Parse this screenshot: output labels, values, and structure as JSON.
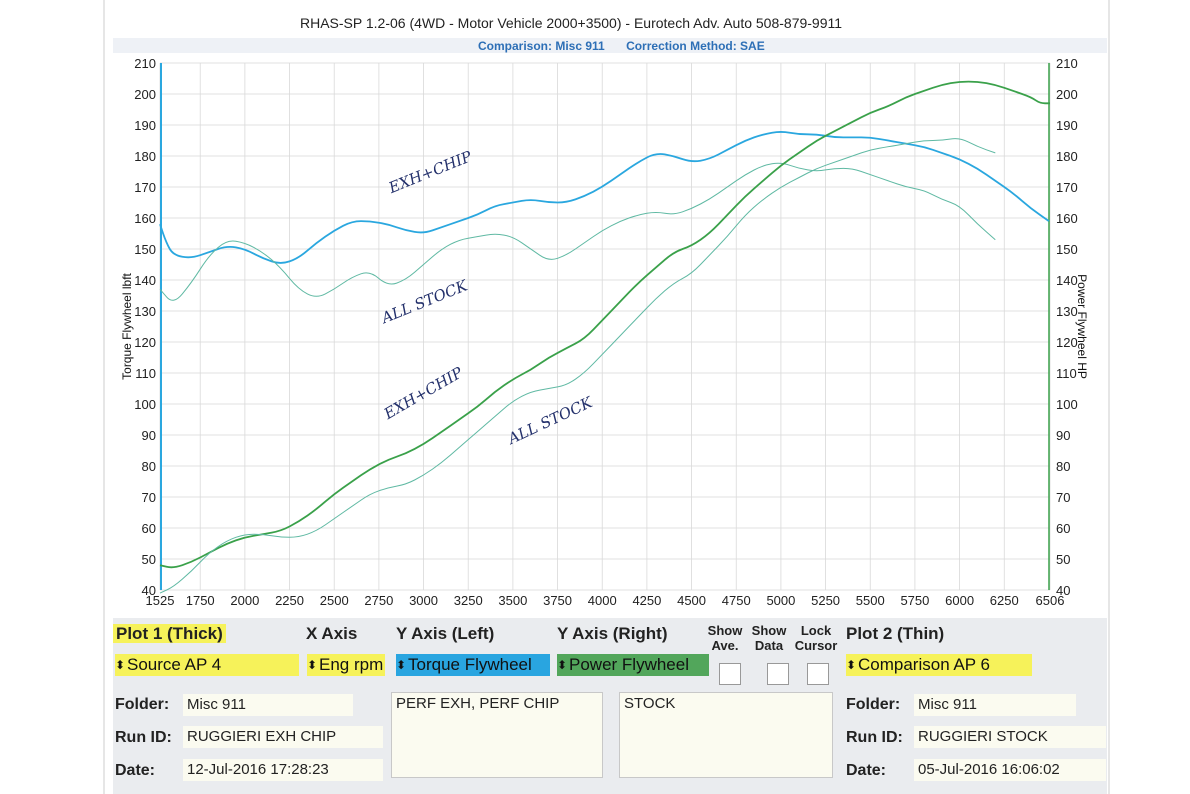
{
  "header": {
    "title": "RHAS-SP 1.2-06  (4WD - Motor Vehicle 2000+3500) - Eurotech Adv. Auto 508-879-9911",
    "comparison": "Comparison: Misc 911",
    "correction": "Correction Method: SAE"
  },
  "chart_data": {
    "type": "line",
    "x_label_ticks": [
      "1525",
      "1750",
      "2000",
      "2250",
      "2500",
      "2750",
      "3000",
      "3250",
      "3500",
      "3750",
      "4000",
      "4250",
      "4500",
      "4750",
      "5000",
      "5250",
      "5500",
      "5750",
      "6000",
      "6250",
      "6506"
    ],
    "xlim": [
      1525,
      6506
    ],
    "ylim": [
      40,
      210
    ],
    "y_ticks": [
      40,
      50,
      60,
      70,
      80,
      90,
      100,
      110,
      120,
      130,
      140,
      150,
      160,
      170,
      180,
      190,
      200,
      210
    ],
    "ylabel_left": "Torque Flywheel lbft",
    "ylabel_right": "Power Flywheel HP",
    "grid": true,
    "series": [
      {
        "name": "Torque - RUGGIERI EXH CHIP (thick)",
        "color": "#2aa7df",
        "width": 1.8,
        "x": [
          1525,
          1560,
          1600,
          1700,
          1800,
          1900,
          2000,
          2100,
          2200,
          2300,
          2400,
          2500,
          2600,
          2700,
          2800,
          2900,
          3000,
          3100,
          3200,
          3300,
          3400,
          3500,
          3600,
          3700,
          3800,
          3900,
          4000,
          4100,
          4200,
          4300,
          4400,
          4500,
          4600,
          4700,
          4800,
          4900,
          5000,
          5100,
          5200,
          5300,
          5400,
          5500,
          5600,
          5700,
          5800,
          5900,
          6000,
          6100,
          6200,
          6300,
          6400,
          6500
        ],
        "y": [
          158,
          152,
          148,
          147,
          149,
          151,
          150,
          147,
          145,
          147,
          152,
          156,
          159,
          159,
          158,
          156,
          155,
          157,
          159,
          161,
          164,
          165,
          166,
          165,
          165,
          167,
          170,
          174,
          178,
          181,
          180,
          178,
          179,
          182,
          185,
          187,
          188,
          187,
          187,
          186,
          186,
          186,
          185,
          184,
          183,
          181,
          179,
          176,
          172,
          168,
          163,
          159
        ]
      },
      {
        "name": "Torque - RUGGIERI STOCK (thin)",
        "color": "#5fb9a3",
        "width": 1,
        "x": [
          1525,
          1600,
          1700,
          1800,
          1900,
          2000,
          2100,
          2200,
          2300,
          2400,
          2500,
          2600,
          2700,
          2800,
          2900,
          3000,
          3100,
          3200,
          3300,
          3400,
          3500,
          3600,
          3700,
          3800,
          3900,
          4000,
          4100,
          4200,
          4300,
          4400,
          4500,
          4600,
          4700,
          4800,
          4900,
          5000,
          5100,
          5200,
          5300,
          5400,
          5500,
          5600,
          5700,
          5800,
          5900,
          6000,
          6100,
          6200
        ],
        "y": [
          137,
          132,
          139,
          148,
          153,
          152,
          149,
          144,
          137,
          134,
          137,
          141,
          143,
          138,
          140,
          145,
          150,
          153,
          154,
          155,
          154,
          150,
          146,
          148,
          152,
          156,
          159,
          161,
          162,
          161,
          163,
          166,
          170,
          174,
          177,
          178,
          176,
          175,
          176,
          176,
          174,
          172,
          170,
          169,
          166,
          164,
          158,
          153
        ]
      },
      {
        "name": "Power - RUGGIERI EXH CHIP (thick)",
        "color": "#3aa14a",
        "width": 1.8,
        "x": [
          1525,
          1600,
          1700,
          1800,
          1900,
          2000,
          2100,
          2200,
          2300,
          2400,
          2500,
          2600,
          2700,
          2800,
          2900,
          3000,
          3100,
          3200,
          3300,
          3400,
          3500,
          3600,
          3700,
          3800,
          3900,
          4000,
          4100,
          4200,
          4300,
          4400,
          4500,
          4600,
          4700,
          4800,
          4900,
          5000,
          5100,
          5200,
          5300,
          5400,
          5500,
          5600,
          5700,
          5800,
          5900,
          6000,
          6100,
          6200,
          6300,
          6400,
          6450,
          6506
        ],
        "y": [
          48,
          47,
          49,
          52,
          55,
          57,
          58,
          59,
          62,
          66,
          71,
          75,
          79,
          82,
          84,
          87,
          91,
          95,
          99,
          104,
          108,
          111,
          115,
          118,
          121,
          127,
          133,
          139,
          144,
          149,
          151,
          155,
          161,
          167,
          172,
          177,
          181,
          185,
          188,
          191,
          194,
          196,
          199,
          201,
          203,
          204,
          204,
          203,
          201,
          199,
          197,
          197
        ]
      },
      {
        "name": "Power - RUGGIERI STOCK (thin)",
        "color": "#5fb9a3",
        "width": 1,
        "x": [
          1525,
          1600,
          1700,
          1800,
          1900,
          2000,
          2100,
          2200,
          2300,
          2400,
          2500,
          2600,
          2700,
          2800,
          2900,
          3000,
          3100,
          3200,
          3300,
          3400,
          3500,
          3600,
          3700,
          3800,
          3900,
          4000,
          4100,
          4200,
          4300,
          4400,
          4500,
          4600,
          4700,
          4800,
          4900,
          5000,
          5100,
          5200,
          5300,
          5400,
          5500,
          5600,
          5700,
          5800,
          5900,
          6000,
          6100,
          6200
        ],
        "y": [
          39,
          41,
          46,
          52,
          56,
          58,
          58,
          57,
          57,
          59,
          63,
          67,
          71,
          73,
          74,
          77,
          81,
          86,
          91,
          96,
          101,
          104,
          105,
          106,
          110,
          116,
          122,
          128,
          134,
          139,
          142,
          148,
          154,
          161,
          166,
          170,
          173,
          176,
          178,
          180,
          182,
          183,
          184,
          185,
          185,
          186,
          183,
          181
        ]
      }
    ],
    "annotations": [
      {
        "text": "EXH+CHIP",
        "x": 2820,
        "y": 168,
        "rotate": -22
      },
      {
        "text": "ALL STOCK",
        "x": 2780,
        "y": 126,
        "rotate": -22
      },
      {
        "text": "EXH+CHIP",
        "x": 2800,
        "y": 95,
        "rotate": -30
      },
      {
        "text": "ALL STOCK",
        "x": 3490,
        "y": 87,
        "rotate": -25
      }
    ]
  },
  "controls": {
    "plot1_label": "Plot 1 (Thick)",
    "xaxis_label": "X Axis",
    "yleft_label": "Y Axis (Left)",
    "yright_label": "Y Axis (Right)",
    "show_ave_label": "Show Ave.",
    "show_data_label": "Show Data",
    "lock_cursor_label": "Lock Cursor",
    "plot2_label": "Plot 2 (Thin)",
    "source_value": "Source AP 4",
    "xaxis_value": "Eng rpm",
    "yleft_value": "Torque Flywheel",
    "yright_value": "Power Flywheel",
    "comparison_value": "Comparison AP 6"
  },
  "plot1": {
    "folder_label": "Folder:",
    "folder": "Misc 911",
    "runid_label": "Run ID:",
    "runid": "RUGGIERI EXH CHIP",
    "date_label": "Date:",
    "date": "12-Jul-2016  17:28:23",
    "notes": "PERF EXH, PERF CHIP"
  },
  "plot2": {
    "folder_label": "Folder:",
    "folder": "Misc 911",
    "runid_label": "Run ID:",
    "runid": "RUGGIERI STOCK",
    "date_label": "Date:",
    "date": "05-Jul-2016  16:06:02",
    "notes": "STOCK"
  }
}
